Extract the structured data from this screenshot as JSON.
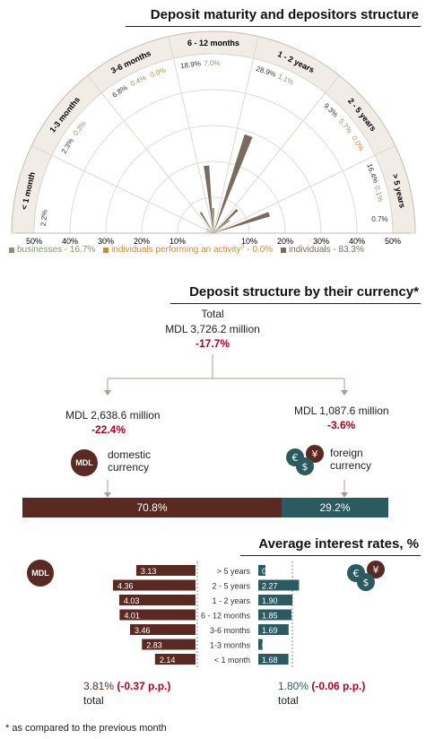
{
  "colors": {
    "maroon": "#5a2a22",
    "teal": "#2b5a60",
    "brown": "#7a6b5e",
    "green": "#7d9a6a",
    "orange": "#c98a3a",
    "red": "#b3001b"
  },
  "rose": {
    "title": "Deposit maturity and depositors structure",
    "sectors": [
      {
        "label": "< 1 month",
        "values": [
          "2.2%",
          "",
          ""
        ]
      },
      {
        "label": "1-3 months",
        "values": [
          "2.3%",
          "0.3%",
          ""
        ]
      },
      {
        "label": "3-6 months",
        "values": [
          "6.8%",
          "0.4%",
          "0.0%"
        ]
      },
      {
        "label": "6 - 12 months",
        "values": [
          "18.9%",
          "7.0%",
          ""
        ]
      },
      {
        "label": "1 - 2 years",
        "values": [
          "28.9%",
          "1.1%",
          ""
        ]
      },
      {
        "label": "2 - 5 years",
        "values": [
          "9.3%",
          "5.7%",
          "0.0%"
        ]
      },
      {
        "label": "> 5 years",
        "values": [
          "16.4%",
          "0.1%",
          ""
        ]
      },
      {
        "label": "",
        "values": [
          "0.7%",
          "",
          ""
        ]
      }
    ],
    "axis_left": [
      "50%",
      "40%",
      "30%",
      "20%",
      "10%"
    ],
    "axis_right": [
      "10%",
      "20%",
      "30%",
      "40%",
      "50%"
    ],
    "legend": [
      {
        "label": "businesses - 16.7%",
        "color": "#7d9a6a"
      },
      {
        "label": "individuals performing an activity",
        "sup": "3",
        "suffix": " - 0.0%",
        "color": "#c98a3a"
      },
      {
        "label": "individuals - 83.3%",
        "color": "#7a6b5e"
      }
    ]
  },
  "chart_data": [
    {
      "type": "rose",
      "title": "Deposit maturity and depositors structure",
      "categories": [
        "< 1 month",
        "1-3 months",
        "3-6 months",
        "6 - 12 months",
        "1 - 2 years",
        "2 - 5 years",
        "> 5 years"
      ],
      "series": [
        {
          "name": "individuals - 83.3%",
          "values": [
            0.7,
            2.3,
            6.8,
            18.9,
            28.9,
            9.3,
            16.4
          ]
        },
        {
          "name": "businesses - 16.7%",
          "values": [
            2.2,
            0.3,
            0.4,
            7.0,
            1.1,
            5.7,
            0.1
          ]
        },
        {
          "name": "individuals performing an activity - 0.0%",
          "values": [
            0.0,
            0.0,
            0.0,
            0.0,
            0.0,
            0.0,
            0.0
          ]
        }
      ],
      "ylim": [
        0,
        50
      ]
    },
    {
      "type": "bar",
      "title": "Deposit structure by their currency*",
      "categories": [
        "domestic currency",
        "foreign currency"
      ],
      "values": [
        70.8,
        29.2
      ]
    },
    {
      "type": "bar",
      "title": "Average interest rates, %",
      "categories": [
        "> 5 years",
        "2 - 5 years",
        "1 - 2 years",
        "6 - 12 months",
        "3-6 months",
        "1-3 months",
        "< 1 month"
      ],
      "series": [
        {
          "name": "MDL",
          "values": [
            3.13,
            4.36,
            4.03,
            4.01,
            3.46,
            2.83,
            2.14
          ]
        },
        {
          "name": "foreign",
          "values": [
            0.4,
            2.27,
            1.9,
            1.85,
            1.69,
            0.24,
            1.68
          ]
        }
      ]
    }
  ],
  "currency": {
    "title": "Deposit structure by their currency*",
    "total_label": "Total",
    "total_value": "MDL 3,726.2 million",
    "total_change": "-17.7%",
    "mdl_value": "MDL 2,638.6 million",
    "mdl_change": "-22.4%",
    "mdl_label": "domestic\ncurrency",
    "fx_value": "MDL 1,087.6 million",
    "fx_change": "-3.6%",
    "fx_label": "foreign\ncurrency",
    "mdl_icon": "MDL",
    "mdl_share": "70.8%",
    "fx_share": "29.2%"
  },
  "rates": {
    "title": "Average interest rates, %",
    "rows": [
      {
        "label": "> 5 years",
        "mdl": "3.13",
        "fx": "0.40"
      },
      {
        "label": "2 - 5 years",
        "mdl": "4.36",
        "fx": "2.27"
      },
      {
        "label": "1 - 2 years",
        "mdl": "4.03",
        "fx": "1.90"
      },
      {
        "label": "6 - 12 months",
        "mdl": "4.01",
        "fx": "1.85"
      },
      {
        "label": "3-6 months",
        "mdl": "3.46",
        "fx": "1.69"
      },
      {
        "label": "1-3 months",
        "mdl": "2.83",
        "fx": "0.24"
      },
      {
        "label": "< 1 month",
        "mdl": "2.14",
        "fx": "1.68"
      }
    ],
    "mdl_total": "3.81%",
    "mdl_delta": "(-0.37 p.p.)",
    "total_label": "total",
    "fx_total": "1.80%",
    "fx_delta": "(-0.06 p.p.)"
  },
  "footnote": "* as compared to the previous month"
}
